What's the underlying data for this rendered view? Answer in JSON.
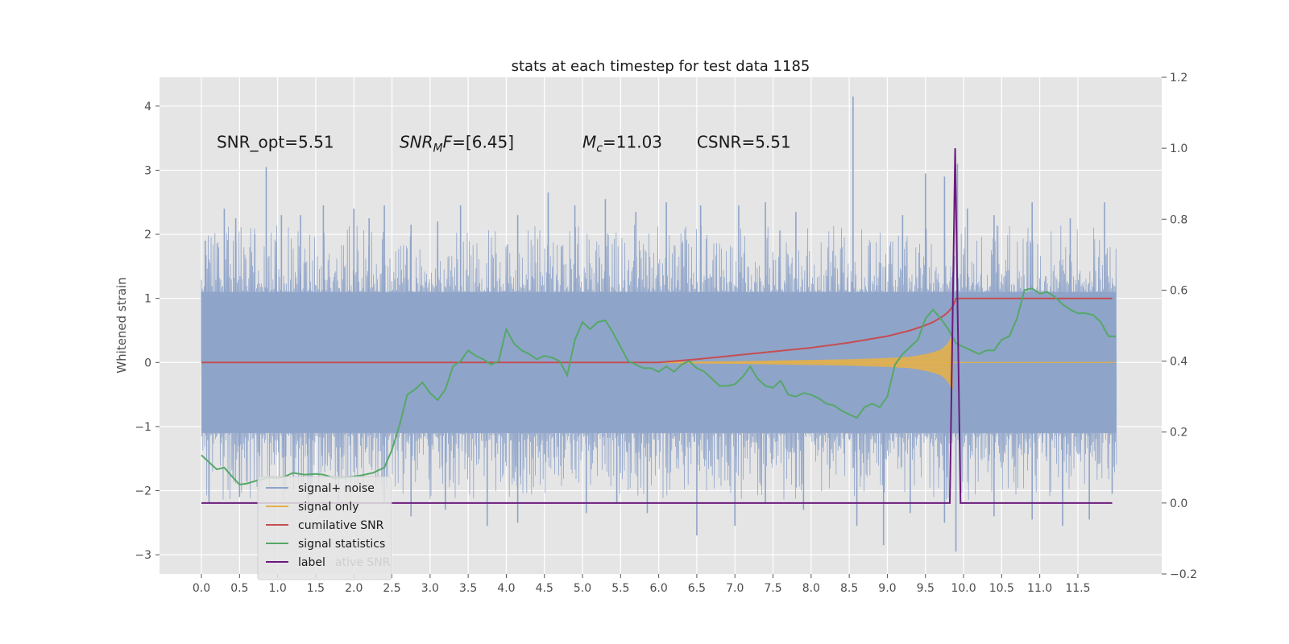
{
  "chart_data": {
    "type": "line",
    "title": "stats at each timestep for test data 1185",
    "xlabel": "",
    "ylabel": "Whitened strain",
    "y2label": "",
    "xlim": [
      -0.55,
      12.6
    ],
    "ylim": [
      -3.3,
      4.45
    ],
    "y2lim": [
      -0.2,
      1.2
    ],
    "grid": true,
    "legend_position": "lower-left",
    "x_ticks": [
      0.0,
      0.5,
      1.0,
      1.5,
      2.0,
      2.5,
      3.0,
      3.5,
      4.0,
      4.5,
      5.0,
      5.5,
      6.0,
      6.5,
      7.0,
      7.5,
      8.0,
      8.5,
      9.0,
      9.5,
      10.0,
      10.5,
      11.0,
      11.5
    ],
    "x_tick_labels": [
      "0.0",
      "0.5",
      "1.0",
      "1.5",
      "2.0",
      "2.5",
      "3.0",
      "3.5",
      "4.0",
      "4.5",
      "5.0",
      "5.5",
      "6.0",
      "6.5",
      "7.0",
      "7.5",
      "8.0",
      "8.5",
      "9.0",
      "9.5",
      "10.0",
      "10.5",
      "11.0",
      "11.5"
    ],
    "y_ticks": [
      -3,
      -2,
      -1,
      0,
      1,
      2,
      3,
      4
    ],
    "y_tick_labels": [
      "−3",
      "−2",
      "−1",
      "0",
      "1",
      "2",
      "3",
      "4"
    ],
    "y2_ticks": [
      -0.2,
      0.0,
      0.2,
      0.4,
      0.6,
      0.8,
      1.0,
      1.2
    ],
    "y2_tick_labels": [
      "−0.2",
      "0.0",
      "0.2",
      "0.4",
      "0.6",
      "0.8",
      "1.0",
      "1.2"
    ],
    "annotations": [
      {
        "parts": [
          {
            "t": "SNR_opt=5.51",
            "i": false
          }
        ],
        "x": 0.2,
        "y": 3.35
      },
      {
        "parts": [
          {
            "t": "SNR",
            "i": true
          },
          {
            "t": "M",
            "i": true,
            "sub": true
          },
          {
            "t": "F",
            "i": true
          },
          {
            "t": "=[6.45]",
            "i": false
          }
        ],
        "x": 2.6,
        "y": 3.35
      },
      {
        "parts": [
          {
            "t": "M",
            "i": true
          },
          {
            "t": "c",
            "i": true,
            "sub": true
          },
          {
            "t": "=11.03",
            "i": false
          }
        ],
        "x": 5.0,
        "y": 3.35
      },
      {
        "parts": [
          {
            "t": "CSNR=5.51",
            "i": false
          }
        ],
        "x": 6.5,
        "y": 3.35
      }
    ],
    "legend_items": [
      "signal+ noise",
      "signal only",
      "cumilative SNR",
      "signal statistics",
      "label"
    ],
    "legend_hidden_text": "ative SNR",
    "series": [
      {
        "name": "signal+ noise",
        "color": "#8fa4c9",
        "axis": "left",
        "kind": "noise",
        "x_range": [
          0.0,
          12.0
        ],
        "band": [
          -1.1,
          1.1
        ],
        "spikes": [
          {
            "x": 0.05,
            "y": 1.9
          },
          {
            "x": 0.3,
            "y": 2.4
          },
          {
            "x": 0.45,
            "y": 2.25
          },
          {
            "x": 0.7,
            "y": 2.0
          },
          {
            "x": 0.85,
            "y": 3.05
          },
          {
            "x": 1.05,
            "y": 2.3
          },
          {
            "x": 1.3,
            "y": 2.3
          },
          {
            "x": 1.6,
            "y": 2.45
          },
          {
            "x": 2.0,
            "y": 2.4
          },
          {
            "x": 2.2,
            "y": 2.25
          },
          {
            "x": 2.4,
            "y": 2.45
          },
          {
            "x": 2.75,
            "y": 2.15
          },
          {
            "x": 3.1,
            "y": 2.2
          },
          {
            "x": 3.4,
            "y": 2.45
          },
          {
            "x": 4.15,
            "y": 2.3
          },
          {
            "x": 4.55,
            "y": 2.65
          },
          {
            "x": 4.9,
            "y": 2.45
          },
          {
            "x": 5.3,
            "y": 2.55
          },
          {
            "x": 5.7,
            "y": 2.35
          },
          {
            "x": 6.1,
            "y": 2.5
          },
          {
            "x": 6.55,
            "y": 2.45
          },
          {
            "x": 7.05,
            "y": 2.45
          },
          {
            "x": 7.4,
            "y": 2.5
          },
          {
            "x": 7.8,
            "y": 2.35
          },
          {
            "x": 8.55,
            "y": 4.15
          },
          {
            "x": 9.2,
            "y": 2.3
          },
          {
            "x": 9.5,
            "y": 2.95
          },
          {
            "x": 9.75,
            "y": 2.9
          },
          {
            "x": 9.92,
            "y": 3.1
          },
          {
            "x": 10.05,
            "y": 2.4
          },
          {
            "x": 10.4,
            "y": 2.3
          },
          {
            "x": 10.9,
            "y": 2.5
          },
          {
            "x": 11.4,
            "y": 2.25
          },
          {
            "x": 11.85,
            "y": 2.5
          },
          {
            "x": 0.1,
            "y": -2.2
          },
          {
            "x": 0.5,
            "y": -2.1
          },
          {
            "x": 1.1,
            "y": -2.0
          },
          {
            "x": 1.4,
            "y": -2.25
          },
          {
            "x": 1.8,
            "y": -2.2
          },
          {
            "x": 2.4,
            "y": -2.2
          },
          {
            "x": 2.75,
            "y": -2.4
          },
          {
            "x": 3.2,
            "y": -2.3
          },
          {
            "x": 3.75,
            "y": -2.55
          },
          {
            "x": 4.15,
            "y": -2.5
          },
          {
            "x": 5.05,
            "y": -2.35
          },
          {
            "x": 5.45,
            "y": -2.2
          },
          {
            "x": 5.85,
            "y": -2.35
          },
          {
            "x": 6.5,
            "y": -2.7
          },
          {
            "x": 7.0,
            "y": -2.55
          },
          {
            "x": 7.4,
            "y": -2.2
          },
          {
            "x": 7.9,
            "y": -2.3
          },
          {
            "x": 8.6,
            "y": -2.55
          },
          {
            "x": 8.95,
            "y": -2.85
          },
          {
            "x": 9.3,
            "y": -2.35
          },
          {
            "x": 9.75,
            "y": -2.5
          },
          {
            "x": 9.9,
            "y": -2.95
          },
          {
            "x": 10.4,
            "y": -2.4
          },
          {
            "x": 10.9,
            "y": -2.45
          },
          {
            "x": 11.3,
            "y": -2.55
          },
          {
            "x": 11.65,
            "y": -2.45
          },
          {
            "x": 11.95,
            "y": -2.05
          }
        ]
      },
      {
        "name": "signal only",
        "color": "#e3b04b",
        "axis": "left",
        "kind": "chirp",
        "x": [
          6.0,
          6.5,
          7.0,
          7.5,
          8.0,
          8.5,
          9.0,
          9.3,
          9.5,
          9.6,
          9.7,
          9.78,
          9.83,
          9.86
        ],
        "amplitude": [
          0.01,
          0.015,
          0.02,
          0.03,
          0.04,
          0.05,
          0.07,
          0.09,
          0.13,
          0.16,
          0.2,
          0.28,
          0.38,
          0.42
        ]
      },
      {
        "name": "cumilative SNR",
        "color": "#c44e52",
        "axis": "left",
        "kind": "line",
        "x": [
          0.0,
          6.0,
          6.5,
          7.0,
          7.5,
          8.0,
          8.5,
          9.0,
          9.3,
          9.5,
          9.6,
          9.7,
          9.75,
          9.8,
          9.85,
          9.88,
          9.9,
          11.95
        ],
        "y": [
          0.0,
          0.0,
          0.05,
          0.11,
          0.17,
          0.23,
          0.31,
          0.41,
          0.5,
          0.58,
          0.63,
          0.7,
          0.74,
          0.79,
          0.86,
          0.93,
          1.0,
          1.0
        ]
      },
      {
        "name": "signal statistics",
        "color": "#55a868",
        "axis": "right",
        "kind": "line",
        "x": [
          0.0,
          0.1,
          0.2,
          0.3,
          0.4,
          0.5,
          0.6,
          0.75,
          0.9,
          1.0,
          1.1,
          1.2,
          1.35,
          1.5,
          1.6,
          1.75,
          1.9,
          2.0,
          2.1,
          2.25,
          2.4,
          2.5,
          2.6,
          2.7,
          2.8,
          2.9,
          3.0,
          3.1,
          3.2,
          3.3,
          3.4,
          3.5,
          3.6,
          3.7,
          3.8,
          3.9,
          4.0,
          4.1,
          4.2,
          4.3,
          4.4,
          4.5,
          4.6,
          4.7,
          4.8,
          4.9,
          5.0,
          5.1,
          5.2,
          5.3,
          5.4,
          5.5,
          5.6,
          5.7,
          5.8,
          5.9,
          6.0,
          6.1,
          6.2,
          6.3,
          6.4,
          6.5,
          6.6,
          6.7,
          6.8,
          6.9,
          7.0,
          7.1,
          7.2,
          7.3,
          7.4,
          7.5,
          7.6,
          7.7,
          7.8,
          7.9,
          8.0,
          8.1,
          8.2,
          8.3,
          8.4,
          8.5,
          8.6,
          8.7,
          8.8,
          8.9,
          9.0,
          9.1,
          9.2,
          9.3,
          9.4,
          9.5,
          9.6,
          9.7,
          9.8,
          9.9,
          10.0,
          10.1,
          10.2,
          10.3,
          10.4,
          10.5,
          10.6,
          10.7,
          10.8,
          10.9,
          11.0,
          11.1,
          11.2,
          11.3,
          11.4,
          11.5,
          11.6,
          11.7,
          11.8,
          11.9,
          12.0
        ],
        "y": [
          0.135,
          0.115,
          0.095,
          0.1,
          0.075,
          0.052,
          0.055,
          0.065,
          0.072,
          0.07,
          0.075,
          0.085,
          0.08,
          0.082,
          0.08,
          0.07,
          0.072,
          0.075,
          0.078,
          0.085,
          0.1,
          0.15,
          0.22,
          0.305,
          0.32,
          0.34,
          0.31,
          0.29,
          0.32,
          0.385,
          0.4,
          0.43,
          0.415,
          0.405,
          0.39,
          0.4,
          0.49,
          0.45,
          0.43,
          0.42,
          0.405,
          0.415,
          0.41,
          0.4,
          0.36,
          0.46,
          0.51,
          0.49,
          0.51,
          0.515,
          0.48,
          0.44,
          0.4,
          0.39,
          0.38,
          0.38,
          0.37,
          0.385,
          0.37,
          0.39,
          0.4,
          0.38,
          0.37,
          0.35,
          0.33,
          0.33,
          0.335,
          0.355,
          0.385,
          0.35,
          0.33,
          0.325,
          0.345,
          0.305,
          0.3,
          0.31,
          0.305,
          0.295,
          0.28,
          0.275,
          0.26,
          0.25,
          0.24,
          0.27,
          0.28,
          0.27,
          0.3,
          0.39,
          0.42,
          0.44,
          0.46,
          0.52,
          0.545,
          0.52,
          0.49,
          0.45,
          0.44,
          0.43,
          0.42,
          0.43,
          0.43,
          0.46,
          0.47,
          0.52,
          0.6,
          0.605,
          0.59,
          0.595,
          0.58,
          0.56,
          0.545,
          0.535,
          0.535,
          0.53,
          0.51,
          0.47,
          0.47
        ]
      },
      {
        "name": "label",
        "color": "#6a1b7d",
        "axis": "right",
        "kind": "line",
        "x": [
          0.0,
          9.82,
          9.89,
          9.96,
          11.95
        ],
        "y": [
          0.0,
          0.0,
          1.0,
          0.0,
          0.0
        ]
      }
    ]
  }
}
